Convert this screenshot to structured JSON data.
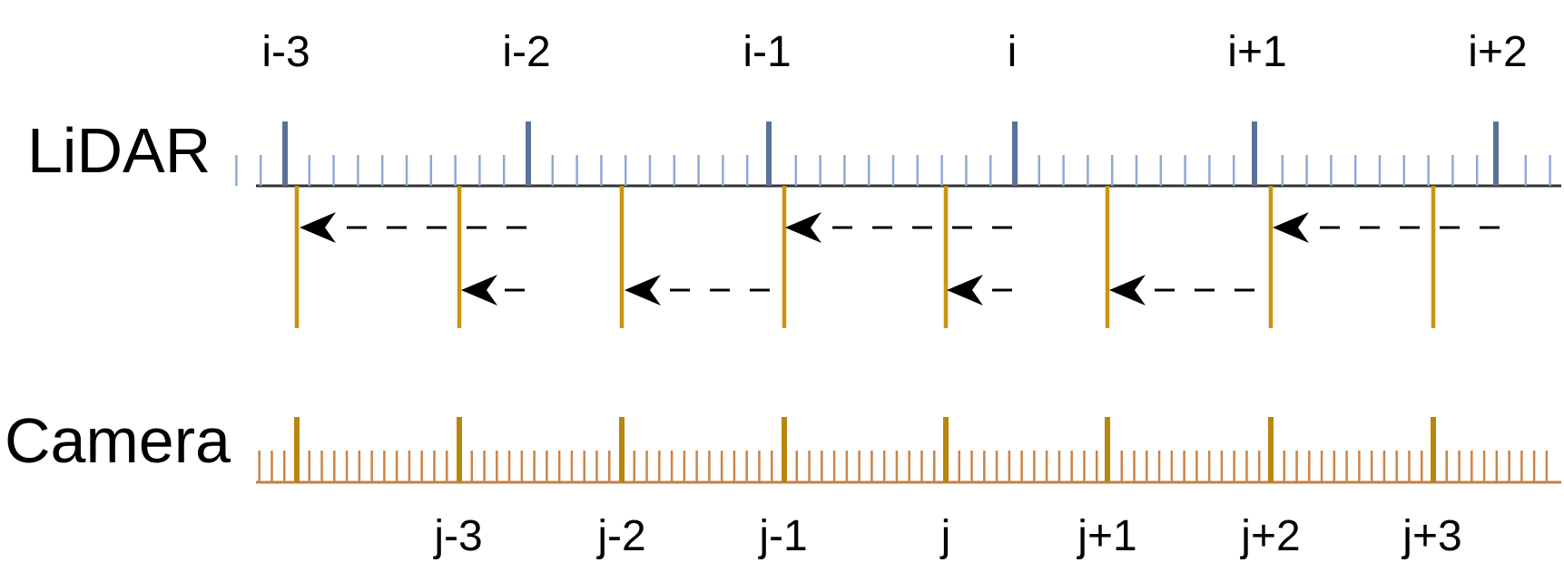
{
  "lidar": {
    "label": "LiDAR",
    "frame_labels": [
      "i-3",
      "i-2",
      "i-1",
      "i",
      "i+1",
      "i+2"
    ]
  },
  "camera": {
    "label": "Camera",
    "frame_labels": [
      "j-3",
      "j-2",
      "j-1",
      "j",
      "j+1",
      "j+2",
      "j+3"
    ]
  },
  "colors": {
    "lidar_axis": "#333333",
    "lidar_major_tick": "#5a7299",
    "lidar_minor_tick": "#8fa8d6",
    "camera_axis": "#c47f45",
    "camera_major_tick": "#b8860b",
    "camera_minor_tick": "#c9854a",
    "sync_line": "#c8950e",
    "arrow": "#000000"
  }
}
